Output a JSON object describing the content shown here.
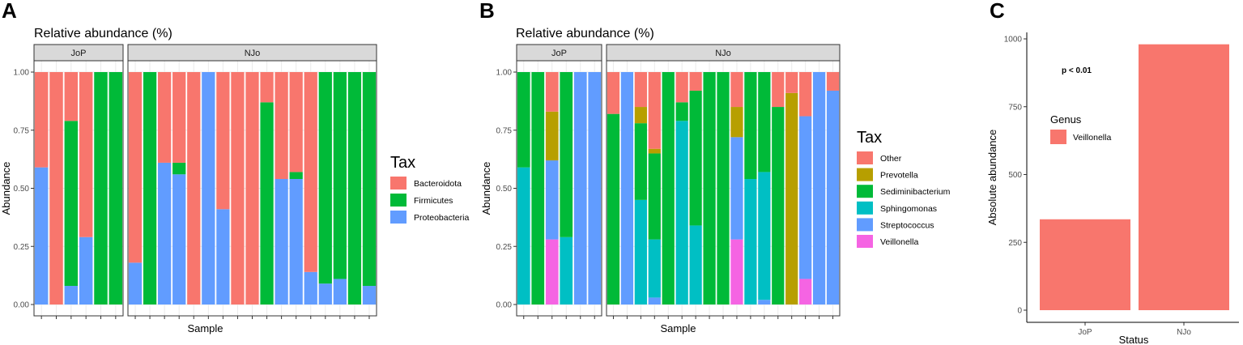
{
  "chart_data": [
    {
      "panel": "A",
      "type": "bar",
      "stacked": true,
      "title": "Relative abundance (%)",
      "xlabel": "Sample",
      "ylabel": "Abundance",
      "ylim": [
        0,
        1
      ],
      "yticks": [
        "0.00",
        "0.25",
        "0.50",
        "0.75",
        "1.00"
      ],
      "facets": [
        {
          "label": "JoP",
          "n_bars": 6
        },
        {
          "label": "NJo",
          "n_bars": 17
        }
      ],
      "legend_title": "Tax",
      "legend": [
        {
          "name": "Bacteroidota",
          "color": "#F8766D"
        },
        {
          "name": "Firmicutes",
          "color": "#00BA38"
        },
        {
          "name": "Proteobacteria",
          "color": "#619CFF"
        }
      ],
      "bottom_to_top_order": [
        "Proteobacteria",
        "Firmicutes",
        "Bacteroidota"
      ],
      "bars": [
        {
          "facet": 0,
          "Proteobacteria": 0.59,
          "Firmicutes": 0,
          "Bacteroidota": 0.41
        },
        {
          "facet": 0,
          "Proteobacteria": 0,
          "Firmicutes": 0,
          "Bacteroidota": 1.0
        },
        {
          "facet": 0,
          "Proteobacteria": 0.08,
          "Firmicutes": 0.71,
          "Bacteroidota": 0.21
        },
        {
          "facet": 0,
          "Proteobacteria": 0.29,
          "Firmicutes": 0,
          "Bacteroidota": 0.71
        },
        {
          "facet": 0,
          "Proteobacteria": 0,
          "Firmicutes": 1.0,
          "Bacteroidota": 0
        },
        {
          "facet": 0,
          "Proteobacteria": 0,
          "Firmicutes": 1.0,
          "Bacteroidota": 0
        },
        {
          "facet": 1,
          "Proteobacteria": 0.18,
          "Firmicutes": 0,
          "Bacteroidota": 0.82
        },
        {
          "facet": 1,
          "Proteobacteria": 0,
          "Firmicutes": 1.0,
          "Bacteroidota": 0
        },
        {
          "facet": 1,
          "Proteobacteria": 0.61,
          "Firmicutes": 0,
          "Bacteroidota": 0.39
        },
        {
          "facet": 1,
          "Proteobacteria": 0.56,
          "Firmicutes": 0.05,
          "Bacteroidota": 0.39
        },
        {
          "facet": 1,
          "Proteobacteria": 0,
          "Firmicutes": 0,
          "Bacteroidota": 1.0
        },
        {
          "facet": 1,
          "Proteobacteria": 1.0,
          "Firmicutes": 0,
          "Bacteroidota": 0
        },
        {
          "facet": 1,
          "Proteobacteria": 0.41,
          "Firmicutes": 0,
          "Bacteroidota": 0.59
        },
        {
          "facet": 1,
          "Proteobacteria": 0,
          "Firmicutes": 0,
          "Bacteroidota": 1.0
        },
        {
          "facet": 1,
          "Proteobacteria": 0,
          "Firmicutes": 0,
          "Bacteroidota": 1.0
        },
        {
          "facet": 1,
          "Proteobacteria": 0,
          "Firmicutes": 0.87,
          "Bacteroidota": 0.13
        },
        {
          "facet": 1,
          "Proteobacteria": 0.54,
          "Firmicutes": 0,
          "Bacteroidota": 0.46
        },
        {
          "facet": 1,
          "Proteobacteria": 0.54,
          "Firmicutes": 0.03,
          "Bacteroidota": 0.43
        },
        {
          "facet": 1,
          "Proteobacteria": 0.14,
          "Firmicutes": 0,
          "Bacteroidota": 0.86
        },
        {
          "facet": 1,
          "Proteobacteria": 0.09,
          "Firmicutes": 0.91,
          "Bacteroidota": 0
        },
        {
          "facet": 1,
          "Proteobacteria": 0.11,
          "Firmicutes": 0.89,
          "Bacteroidota": 0
        },
        {
          "facet": 1,
          "Proteobacteria": 0,
          "Firmicutes": 1.0,
          "Bacteroidota": 0
        },
        {
          "facet": 1,
          "Proteobacteria": 0.08,
          "Firmicutes": 0.92,
          "Bacteroidota": 0
        }
      ]
    },
    {
      "panel": "B",
      "type": "bar",
      "stacked": true,
      "title": "Relative abundance (%)",
      "xlabel": "Sample",
      "ylabel": "Abundance",
      "ylim": [
        0,
        1
      ],
      "yticks": [
        "0.00",
        "0.25",
        "0.50",
        "0.75",
        "1.00"
      ],
      "facets": [
        {
          "label": "JoP",
          "n_bars": 6
        },
        {
          "label": "NJo",
          "n_bars": 17
        }
      ],
      "legend_title": "Tax",
      "legend": [
        {
          "name": "Other",
          "color": "#F8766D"
        },
        {
          "name": "Prevotella",
          "color": "#B79F00"
        },
        {
          "name": "Sediminibacterium",
          "color": "#00BA38"
        },
        {
          "name": "Sphingomonas",
          "color": "#00BFC4"
        },
        {
          "name": "Streptococcus",
          "color": "#619CFF"
        },
        {
          "name": "Veillonella",
          "color": "#F564E3"
        }
      ],
      "bottom_to_top_order": [
        "Veillonella",
        "Streptococcus",
        "Sphingomonas",
        "Sediminibacterium",
        "Prevotella",
        "Other"
      ],
      "bars": [
        {
          "facet": 0,
          "Veillonella": 0,
          "Streptococcus": 0,
          "Sphingomonas": 0.59,
          "Sediminibacterium": 0.41,
          "Prevotella": 0,
          "Other": 0
        },
        {
          "facet": 0,
          "Veillonella": 0,
          "Streptococcus": 0,
          "Sphingomonas": 0,
          "Sediminibacterium": 1.0,
          "Prevotella": 0,
          "Other": 0
        },
        {
          "facet": 0,
          "Veillonella": 0.28,
          "Streptococcus": 0.34,
          "Sphingomonas": 0,
          "Sediminibacterium": 0,
          "Prevotella": 0.21,
          "Other": 0.17
        },
        {
          "facet": 0,
          "Veillonella": 0,
          "Streptococcus": 0,
          "Sphingomonas": 0.29,
          "Sediminibacterium": 0.71,
          "Prevotella": 0,
          "Other": 0
        },
        {
          "facet": 0,
          "Veillonella": 0,
          "Streptococcus": 1.0,
          "Sphingomonas": 0,
          "Sediminibacterium": 0,
          "Prevotella": 0,
          "Other": 0
        },
        {
          "facet": 0,
          "Veillonella": 0,
          "Streptococcus": 1.0,
          "Sphingomonas": 0,
          "Sediminibacterium": 0,
          "Prevotella": 0,
          "Other": 0
        },
        {
          "facet": 1,
          "Veillonella": 0,
          "Streptococcus": 0,
          "Sphingomonas": 0,
          "Sediminibacterium": 0.82,
          "Prevotella": 0,
          "Other": 0.18
        },
        {
          "facet": 1,
          "Veillonella": 0,
          "Streptococcus": 1.0,
          "Sphingomonas": 0,
          "Sediminibacterium": 0,
          "Prevotella": 0,
          "Other": 0
        },
        {
          "facet": 1,
          "Veillonella": 0,
          "Streptococcus": 0,
          "Sphingomonas": 0.45,
          "Sediminibacterium": 0.33,
          "Prevotella": 0.07,
          "Other": 0.15
        },
        {
          "facet": 1,
          "Veillonella": 0,
          "Streptococcus": 0.03,
          "Sphingomonas": 0.25,
          "Sediminibacterium": 0.37,
          "Prevotella": 0.02,
          "Other": 0.33
        },
        {
          "facet": 1,
          "Veillonella": 0,
          "Streptococcus": 0,
          "Sphingomonas": 0,
          "Sediminibacterium": 1.0,
          "Prevotella": 0,
          "Other": 0
        },
        {
          "facet": 1,
          "Veillonella": 0,
          "Streptococcus": 0,
          "Sphingomonas": 0.79,
          "Sediminibacterium": 0.08,
          "Prevotella": 0,
          "Other": 0.13
        },
        {
          "facet": 1,
          "Veillonella": 0,
          "Streptococcus": 0,
          "Sphingomonas": 0.34,
          "Sediminibacterium": 0.58,
          "Prevotella": 0,
          "Other": 0.08
        },
        {
          "facet": 1,
          "Veillonella": 0,
          "Streptococcus": 0,
          "Sphingomonas": 0,
          "Sediminibacterium": 1.0,
          "Prevotella": 0,
          "Other": 0
        },
        {
          "facet": 1,
          "Veillonella": 0,
          "Streptococcus": 0,
          "Sphingomonas": 0,
          "Sediminibacterium": 1.0,
          "Prevotella": 0,
          "Other": 0
        },
        {
          "facet": 1,
          "Veillonella": 0.28,
          "Streptococcus": 0.44,
          "Sphingomonas": 0,
          "Sediminibacterium": 0,
          "Prevotella": 0.13,
          "Other": 0.15
        },
        {
          "facet": 1,
          "Veillonella": 0,
          "Streptococcus": 0,
          "Sphingomonas": 0.54,
          "Sediminibacterium": 0.46,
          "Prevotella": 0,
          "Other": 0
        },
        {
          "facet": 1,
          "Veillonella": 0,
          "Streptococcus": 0.02,
          "Sphingomonas": 0.55,
          "Sediminibacterium": 0.43,
          "Prevotella": 0,
          "Other": 0
        },
        {
          "facet": 1,
          "Veillonella": 0,
          "Streptococcus": 0,
          "Sphingomonas": 0,
          "Sediminibacterium": 0.85,
          "Prevotella": 0,
          "Other": 0.15
        },
        {
          "facet": 1,
          "Veillonella": 0,
          "Streptococcus": 0,
          "Sphingomonas": 0,
          "Sediminibacterium": 0,
          "Prevotella": 0.91,
          "Other": 0.09
        },
        {
          "facet": 1,
          "Veillonella": 0.11,
          "Streptococcus": 0.7,
          "Sphingomonas": 0,
          "Sediminibacterium": 0,
          "Prevotella": 0,
          "Other": 0.19
        },
        {
          "facet": 1,
          "Veillonella": 0,
          "Streptococcus": 1.0,
          "Sphingomonas": 0,
          "Sediminibacterium": 0,
          "Prevotella": 0,
          "Other": 0
        },
        {
          "facet": 1,
          "Veillonella": 0,
          "Streptococcus": 0.92,
          "Sphingomonas": 0,
          "Sediminibacterium": 0,
          "Prevotella": 0,
          "Other": 0.08
        }
      ]
    },
    {
      "panel": "C",
      "type": "bar",
      "title": "",
      "xlabel": "Status",
      "ylabel": "Absolute abundance",
      "ylim": [
        0,
        1000
      ],
      "yticks": [
        "0",
        "250",
        "500",
        "750",
        "1000"
      ],
      "categories": [
        "JoP",
        "NJo"
      ],
      "values": [
        335,
        980
      ],
      "series": [
        {
          "name": "Veillonella",
          "color": "#F8766D",
          "values": [
            335,
            980
          ]
        }
      ],
      "legend_title": "Genus",
      "legend": [
        {
          "name": "Veillonella",
          "color": "#F8766D"
        }
      ],
      "annotation": "p < 0.01"
    }
  ],
  "panel_labels": [
    "A",
    "B",
    "C"
  ]
}
